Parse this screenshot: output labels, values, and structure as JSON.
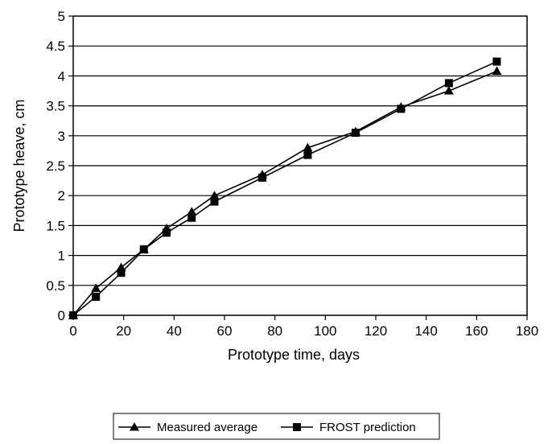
{
  "chart_data": {
    "type": "line",
    "title": "",
    "xlabel": "Prototype time, days",
    "ylabel": "Prototype heave, cm",
    "xlim": [
      0,
      180
    ],
    "ylim": [
      0,
      5
    ],
    "x_ticks": [
      "0",
      "20",
      "40",
      "60",
      "80",
      "100",
      "120",
      "140",
      "160",
      "180"
    ],
    "y_ticks": [
      "0",
      "0.5",
      "1",
      "1.5",
      "2",
      "2.5",
      "3",
      "3.5",
      "4",
      "4.5",
      "5"
    ],
    "grid": "horizontal",
    "legend_position": "bottom",
    "series": [
      {
        "name": "Measured average",
        "marker": "triangle",
        "color": "#000000",
        "x": [
          0,
          9,
          19,
          28,
          37,
          47,
          56,
          75,
          93,
          112,
          130,
          149,
          168
        ],
        "y": [
          0,
          0.45,
          0.8,
          1.1,
          1.45,
          1.73,
          2.0,
          2.35,
          2.8,
          3.07,
          3.48,
          3.75,
          4.08
        ]
      },
      {
        "name": "FROST prediction",
        "marker": "square",
        "color": "#000000",
        "x": [
          0,
          9,
          19,
          28,
          37,
          47,
          56,
          75,
          93,
          112,
          130,
          149,
          168
        ],
        "y": [
          0,
          0.31,
          0.71,
          1.1,
          1.38,
          1.63,
          1.9,
          2.3,
          2.68,
          3.05,
          3.45,
          3.88,
          4.24
        ]
      }
    ]
  }
}
